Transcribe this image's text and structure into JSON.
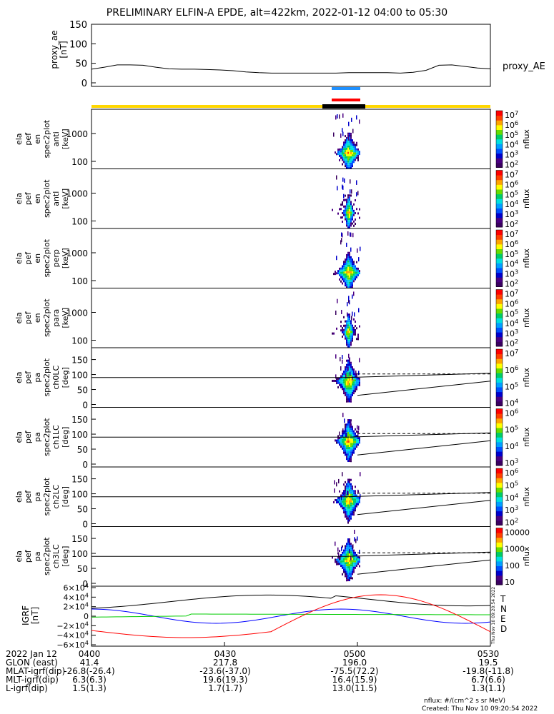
{
  "title": "PRELIMINARY ELFIN-A EPDE, alt=422km, 2022-01-12 04:00 to 05:30",
  "chart_data": {
    "type": "spectrogram",
    "time_range": [
      "04:00",
      "05:30"
    ],
    "proxy_ae": {
      "ylabel": "proxy_ae [nT]",
      "legend": "proxy_AE",
      "ylim": [
        0,
        150
      ],
      "yticks": [
        "0",
        "50",
        "100",
        "150"
      ],
      "values_nT": [
        35,
        40,
        46,
        46,
        45,
        40,
        36,
        35,
        35,
        34,
        33,
        31,
        28,
        26,
        25,
        25,
        25,
        25,
        25,
        25,
        26,
        26,
        26,
        26,
        25,
        27,
        32,
        45,
        46,
        42,
        38,
        36
      ]
    },
    "panels": [
      {
        "label": "ela pef en spec2plot anti [keV]",
        "yticks": [
          "1000",
          "100"
        ],
        "cb_ticks": [
          "10^7",
          "10^6",
          "10^5",
          "10^4",
          "10^3",
          "10^2"
        ],
        "cb_label": "nflux"
      },
      {
        "label": "ela pef en spec2plot antl [keV]",
        "yticks": [
          "1000",
          "100"
        ],
        "cb_ticks": [
          "10^7",
          "10^6",
          "10^5",
          "10^4",
          "10^3",
          "10^2"
        ],
        "cb_label": "nflux"
      },
      {
        "label": "ela pef en spec2plot perp [keV]",
        "yticks": [
          "1000",
          "100"
        ],
        "cb_ticks": [
          "10^7",
          "10^6",
          "10^5",
          "10^4",
          "10^3",
          "10^2"
        ],
        "cb_label": "nflux"
      },
      {
        "label": "ela pef en spec2plot para [keV]",
        "yticks": [
          "1000",
          "100"
        ],
        "cb_ticks": [
          "10^7",
          "10^6",
          "10^5",
          "10^4",
          "10^3",
          "10^2"
        ],
        "cb_label": "nflux"
      },
      {
        "label": "ela pef pa spec2plot ch0LC [deg]",
        "yticks": [
          "150",
          "100",
          "50",
          "0"
        ],
        "cb_ticks": [
          "10^7",
          "10^6",
          "10^5",
          "10^4"
        ],
        "cb_label": "nflux"
      },
      {
        "label": "ela pef pa spec2plot ch1LC [deg]",
        "yticks": [
          "150",
          "100",
          "50",
          "0"
        ],
        "cb_ticks": [
          "10^6",
          "10^5",
          "10^4",
          "10^3"
        ],
        "cb_label": "nflux"
      },
      {
        "label": "ela pef pa spec2plot ch2LC [deg]",
        "yticks": [
          "150",
          "100",
          "50",
          "0"
        ],
        "cb_ticks": [
          "10^6",
          "10^5",
          "10^4",
          "10^3",
          "10^2"
        ],
        "cb_label": "nflux"
      },
      {
        "label": "ela pef pa spec2plot ch3LC [deg]",
        "yticks": [
          "150",
          "100",
          "50",
          "0"
        ],
        "cb_ticks": [
          "10000",
          "1000",
          "100",
          "10"
        ],
        "cb_label": "nflux"
      }
    ],
    "igrf": {
      "ylabel": "IGRF [nT]",
      "ylim": [
        -60000,
        60000
      ],
      "yticks": [
        "6×10^4",
        "4×10^4",
        "2×10^4",
        "0",
        "−2×10^4",
        "−4×10^4",
        "−6×10^4"
      ],
      "legend": [
        "T",
        "N",
        "E",
        "D"
      ],
      "series_colors": {
        "T": "#000000",
        "N": "#0000ff",
        "E": "#00cc00",
        "D": "#ff0000"
      }
    },
    "orbit_table": {
      "times": [
        "0400",
        "0430",
        "0500",
        "0530"
      ],
      "rows": [
        {
          "label": "2022 Jan 12",
          "values": [
            "0400",
            "0430",
            "0500",
            "0530"
          ]
        },
        {
          "label": "GLON (east)",
          "values": [
            "41.4",
            "217.8",
            "196.0",
            "19.5"
          ]
        },
        {
          "label": "MLAT-igrf(dip)",
          "values": [
            "-26.8(-26.4)",
            "-23.6(-37.0)",
            "-75.5(72.2)",
            "-19.8(-11.8)"
          ]
        },
        {
          "label": "MLT-igrf(dip)",
          "values": [
            "6.3(6.3)",
            "19.6(19.3)",
            "16.4(15.9)",
            "6.7(6.6)"
          ]
        },
        {
          "label": "L-igrf(dip)",
          "values": [
            "1.5(1.3)",
            "1.7(1.7)",
            "13.0(11.5)",
            "1.3(1.1)"
          ]
        }
      ]
    }
  },
  "footer": {
    "units": "nflux: #/(cm^2 s sr MeV)",
    "created": "Created: Thu Nov 10 09:20:54 2022",
    "side_stamp": "Thu Nov 10 09:20:54 2022"
  },
  "colors": {
    "sunlight_bar": "#ffd700",
    "shadow_bar": "#000000",
    "science_blue": "#1e90ff",
    "science_red": "#ff0000"
  }
}
